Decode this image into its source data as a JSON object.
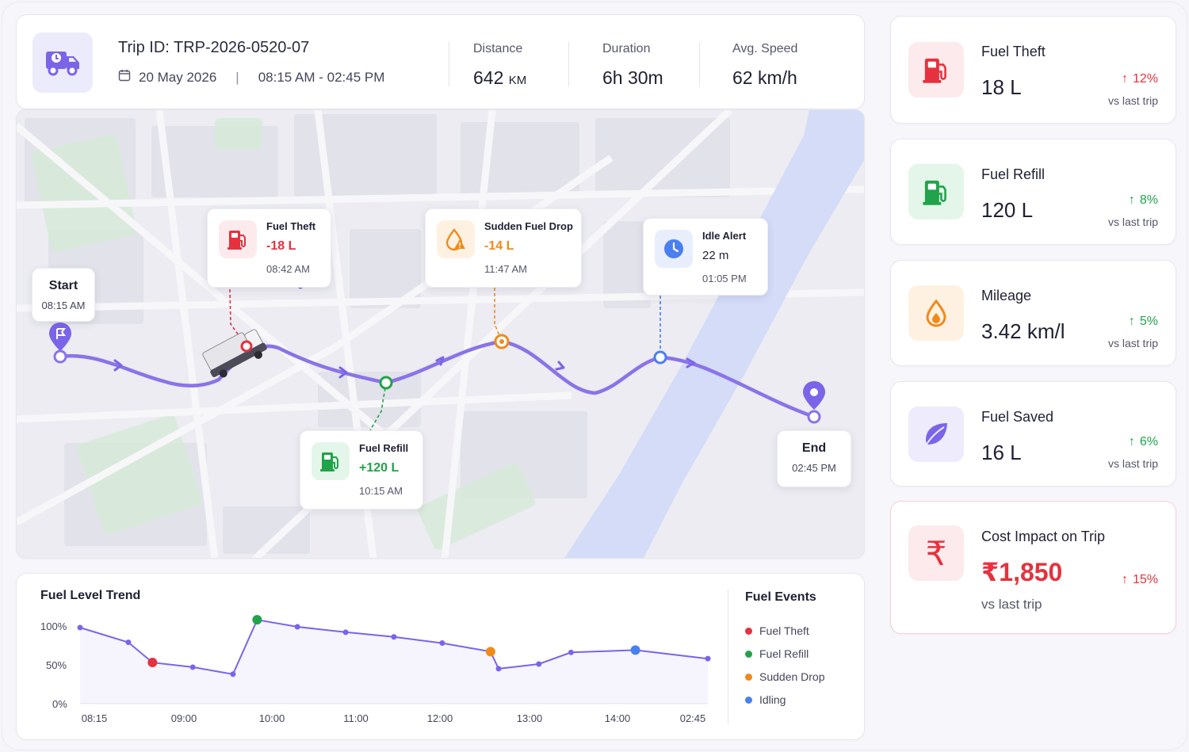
{
  "header": {
    "trip_id": "Trip ID: TRP-2026-0520-07",
    "date": "20 May 2026",
    "time_range": "08:15 AM - 02:45 PM",
    "stats": [
      {
        "label": "Distance",
        "value": "642",
        "unit": "KM"
      },
      {
        "label": "Duration",
        "value": "6h 30m",
        "unit": ""
      },
      {
        "label": "Avg. Speed",
        "value": "62 km/h",
        "unit": ""
      }
    ]
  },
  "map": {
    "start": {
      "label": "Start",
      "time": "08:15 AM"
    },
    "end": {
      "label": "End",
      "time": "02:45 PM"
    },
    "events": [
      {
        "title": "Fuel Theft",
        "value": "-18 L",
        "time": "08:42 AM",
        "color": "#e5323e"
      },
      {
        "title": "Sudden Fuel Drop",
        "value": "-14 L",
        "time": "11:47 AM",
        "color": "#f08a1a"
      },
      {
        "title": "Idle Alert",
        "value": "22 m",
        "time": "01:05 PM",
        "color": "#1f2133"
      },
      {
        "title": "Fuel Refill",
        "value": "+120 L",
        "time": "10:15 AM",
        "color": "#20a34a"
      }
    ]
  },
  "trend": {
    "title": "Fuel Level Trend",
    "legend_title": "Fuel Events",
    "legend": [
      {
        "name": "Fuel Theft",
        "color": "#e5323e"
      },
      {
        "name": "Fuel Refill",
        "color": "#20a34a"
      },
      {
        "name": "Sudden Drop",
        "color": "#f08a1a"
      },
      {
        "name": "Idling",
        "color": "#4a7ff0"
      }
    ]
  },
  "chart_data": {
    "type": "line",
    "title": "Fuel Level Trend",
    "ylabel": "",
    "xlabel": "",
    "ylim": [
      0,
      100
    ],
    "y_ticks": [
      "100%",
      "50%",
      "0%"
    ],
    "x_ticks": [
      "08:15",
      "09:00",
      "10:00",
      "11:00",
      "12:00",
      "13:00",
      "14:00",
      "02:45"
    ],
    "grid": false,
    "legend_placement": "right",
    "series": [
      {
        "name": "",
        "points": [
          {
            "x": "08:15",
            "y": 98
          },
          {
            "x": "08:45",
            "y": 79
          },
          {
            "x": "09:00",
            "y": 53,
            "event": "Fuel Theft"
          },
          {
            "x": "09:25",
            "y": 47
          },
          {
            "x": "09:50",
            "y": 38
          },
          {
            "x": "10:05",
            "y": 108,
            "event": "Fuel Refill"
          },
          {
            "x": "10:30",
            "y": 99
          },
          {
            "x": "11:00",
            "y": 92
          },
          {
            "x": "11:30",
            "y": 86
          },
          {
            "x": "12:00",
            "y": 78
          },
          {
            "x": "12:30",
            "y": 67,
            "event": "Sudden Drop"
          },
          {
            "x": "12:35",
            "y": 45
          },
          {
            "x": "13:00",
            "y": 51
          },
          {
            "x": "13:20",
            "y": 66
          },
          {
            "x": "14:00",
            "y": 69,
            "event": "Idling"
          },
          {
            "x": "14:45",
            "y": 58
          }
        ]
      }
    ]
  },
  "kpis": [
    {
      "label": "Fuel Theft",
      "value": "18 L",
      "pct": "12%",
      "vs": "vs last trip",
      "icon": "fuel-pump-alert-icon",
      "color": "#e5323e",
      "bg": "#fdeaec",
      "arrow": "#e5323e"
    },
    {
      "label": "Fuel Refill",
      "value": "120 L",
      "pct": "8%",
      "vs": "vs last trip",
      "icon": "fuel-pump-icon",
      "color": "#20a34a",
      "bg": "#e4f6ea",
      "arrow": "#20a34a"
    },
    {
      "label": "Mileage",
      "value": "3.42 km/l",
      "pct": "5%",
      "vs": "vs last trip",
      "icon": "drop-icon",
      "color": "#f08a1a",
      "bg": "#fff1e2",
      "arrow": "#20a34a"
    },
    {
      "label": "Fuel Saved",
      "value": "16 L",
      "pct": "6%",
      "vs": "vs last trip",
      "icon": "leaf-icon",
      "color": "#7c64e8",
      "bg": "#eeebfc",
      "arrow": "#20a34a"
    },
    {
      "label": "Cost Impact on Trip",
      "value": "₹1,850",
      "pct": "15%",
      "vs": "vs last trip",
      "icon": "rupee-icon",
      "color": "#e5323e",
      "bg": "#fdeaec",
      "arrow": "#e5323e"
    }
  ]
}
